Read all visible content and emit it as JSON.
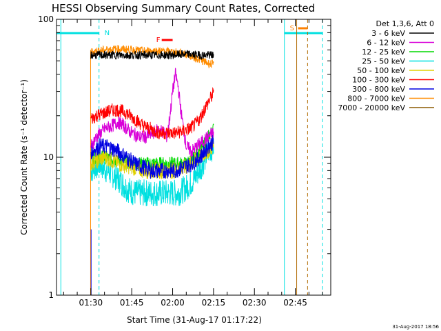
{
  "chart_data": {
    "type": "line",
    "title": "HESSI Observing Summary Count Rates, Corrected",
    "xlabel": "Start Time (31-Aug-17 01:17:22)",
    "ylabel": "Corrected Count Rate (s⁻¹ detector⁻¹)",
    "x_ticks": [
      "01:30",
      "01:45",
      "02:00",
      "02:15",
      "02:30",
      "02:45"
    ],
    "y_ticks": [
      "1",
      "10",
      "100"
    ],
    "xlim_minutes": [
      77.4,
      178
    ],
    "ylim": [
      1,
      100
    ],
    "y_scale": "log",
    "legend_header": "Det 1,3,6, Att 0",
    "legend_position": "outside-right",
    "timestamp": "31-Aug-2017 18:56",
    "markers": {
      "night_label": "N",
      "saa_label": "S",
      "flare_label": "F"
    },
    "series": [
      {
        "name": "3 - 6 keV",
        "color": "#000000",
        "points": [
          [
            90,
            55
          ],
          [
            95,
            55
          ],
          [
            100,
            55
          ],
          [
            105,
            55
          ],
          [
            110,
            55
          ],
          [
            115,
            55
          ],
          [
            120,
            55
          ],
          [
            125,
            56
          ],
          [
            130,
            55
          ],
          [
            135,
            55
          ]
        ]
      },
      {
        "name": "6 - 12 keV",
        "color": "#d800d8",
        "points": [
          [
            90,
            12
          ],
          [
            92,
            14
          ],
          [
            95,
            16
          ],
          [
            98,
            17
          ],
          [
            100,
            18
          ],
          [
            102,
            17
          ],
          [
            105,
            15
          ],
          [
            108,
            14
          ],
          [
            110,
            14
          ],
          [
            113,
            15
          ],
          [
            115,
            16
          ],
          [
            117,
            15
          ],
          [
            118,
            14
          ],
          [
            119,
            20
          ],
          [
            120,
            30
          ],
          [
            121,
            40
          ],
          [
            122,
            33
          ],
          [
            123,
            22
          ],
          [
            124,
            16
          ],
          [
            125,
            12
          ],
          [
            127,
            11
          ],
          [
            129,
            12
          ],
          [
            131,
            13
          ],
          [
            133,
            14
          ],
          [
            135,
            15
          ]
        ]
      },
      {
        "name": "12 - 25 keV",
        "color": "#00d800",
        "points": [
          [
            90,
            10
          ],
          [
            95,
            10
          ],
          [
            100,
            9.5
          ],
          [
            105,
            9
          ],
          [
            110,
            9
          ],
          [
            115,
            9
          ],
          [
            120,
            9
          ],
          [
            125,
            9
          ],
          [
            128,
            10
          ],
          [
            131,
            12
          ],
          [
            133,
            14
          ],
          [
            135,
            16
          ]
        ]
      },
      {
        "name": "25 - 50 keV",
        "color": "#00e0e0",
        "points": [
          [
            90,
            8
          ],
          [
            93,
            9
          ],
          [
            96,
            8
          ],
          [
            100,
            7
          ],
          [
            103,
            6
          ],
          [
            106,
            5.5
          ],
          [
            110,
            5.5
          ],
          [
            113,
            5.5
          ],
          [
            116,
            5.5
          ],
          [
            119,
            5.5
          ],
          [
            122,
            5.5
          ],
          [
            125,
            6
          ],
          [
            128,
            7
          ],
          [
            131,
            9
          ],
          [
            133,
            11
          ],
          [
            135,
            12
          ]
        ]
      },
      {
        "name": "50 - 100 keV",
        "color": "#e0d000",
        "points": [
          [
            90,
            9
          ],
          [
            95,
            10
          ],
          [
            100,
            9
          ],
          [
            105,
            8.5
          ],
          [
            110,
            8
          ],
          [
            115,
            8
          ],
          [
            120,
            8
          ],
          [
            125,
            8.5
          ],
          [
            130,
            10
          ],
          [
            135,
            12
          ]
        ]
      },
      {
        "name": "100 - 300 keV",
        "color": "#ff0000",
        "points": [
          [
            90,
            19
          ],
          [
            92,
            20
          ],
          [
            95,
            21
          ],
          [
            98,
            22
          ],
          [
            100,
            22
          ],
          [
            103,
            21
          ],
          [
            106,
            19
          ],
          [
            109,
            17
          ],
          [
            112,
            16
          ],
          [
            115,
            15
          ],
          [
            118,
            15
          ],
          [
            121,
            15
          ],
          [
            124,
            15.5
          ],
          [
            126,
            16
          ],
          [
            128,
            17
          ],
          [
            130,
            19
          ],
          [
            132,
            23
          ],
          [
            134,
            27
          ],
          [
            135,
            29
          ]
        ]
      },
      {
        "name": "300 - 800 keV",
        "color": "#0000e0",
        "points": [
          [
            90,
            11
          ],
          [
            93,
            12
          ],
          [
            96,
            12
          ],
          [
            100,
            11
          ],
          [
            103,
            10
          ],
          [
            106,
            9
          ],
          [
            109,
            8.5
          ],
          [
            112,
            8
          ],
          [
            115,
            8
          ],
          [
            118,
            8
          ],
          [
            121,
            8
          ],
          [
            124,
            8.5
          ],
          [
            127,
            9
          ],
          [
            130,
            10
          ],
          [
            133,
            12
          ],
          [
            135,
            13
          ]
        ]
      },
      {
        "name": "800 - 7000 keV",
        "color": "#ff8c00",
        "points": [
          [
            90,
            58
          ],
          [
            95,
            60
          ],
          [
            100,
            61
          ],
          [
            105,
            60
          ],
          [
            110,
            59
          ],
          [
            115,
            59
          ],
          [
            120,
            58
          ],
          [
            125,
            56
          ],
          [
            128,
            53
          ],
          [
            131,
            50
          ],
          [
            133,
            48
          ],
          [
            135,
            47
          ]
        ]
      },
      {
        "name": "7000 - 20000 keV",
        "color": "#8b5a00",
        "points": []
      }
    ]
  }
}
